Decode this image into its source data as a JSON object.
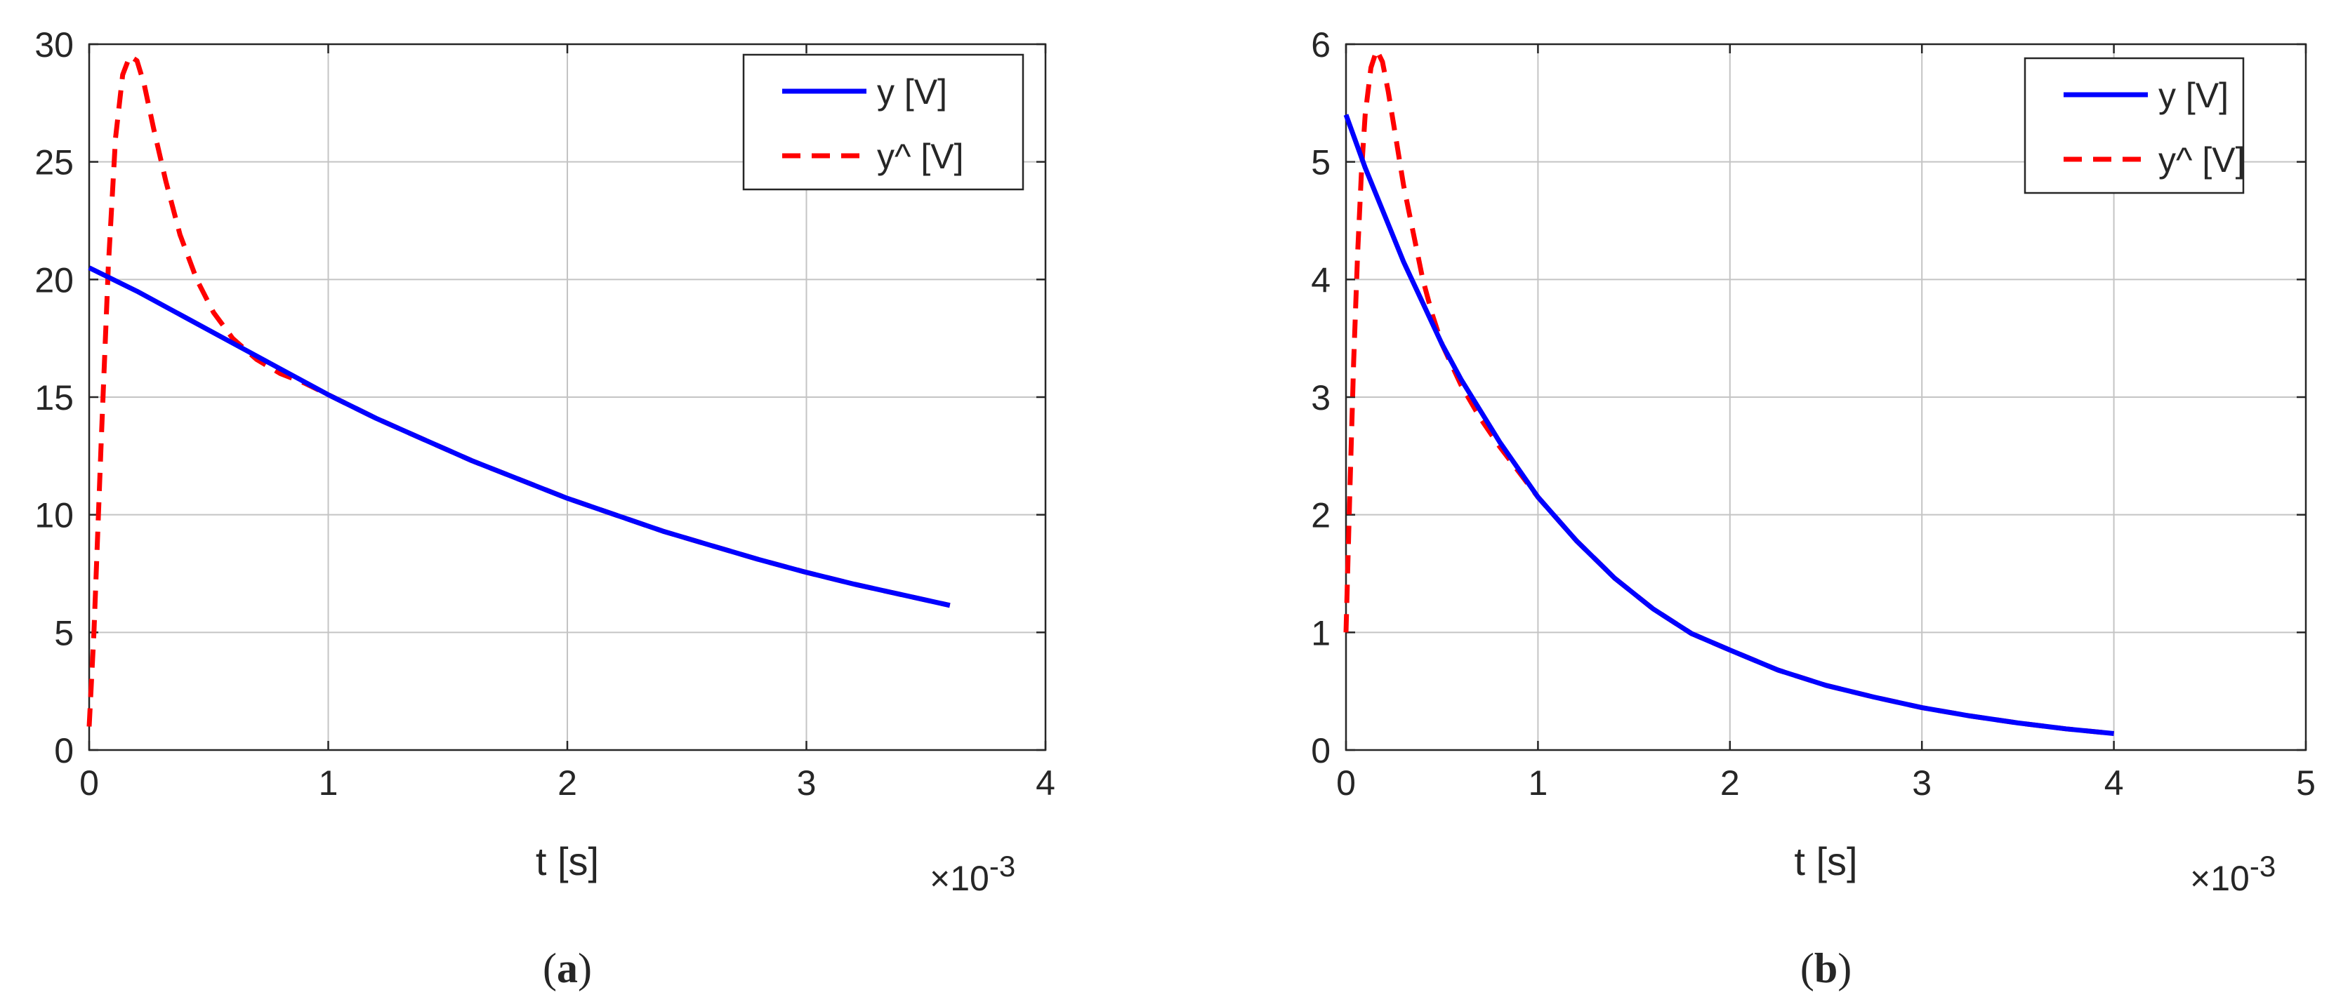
{
  "chart_data": [
    {
      "type": "line",
      "panel": "a",
      "caption": "a",
      "xlabel": "t [s]",
      "x_multiplier": "×10",
      "x_multiplier_exponent": "-3",
      "xlim": [
        0,
        4
      ],
      "ylim": [
        0,
        30
      ],
      "xticks": [
        "0",
        "1",
        "2",
        "3",
        "4"
      ],
      "yticks": [
        "0",
        "5",
        "10",
        "15",
        "20",
        "25",
        "30"
      ],
      "grid": true,
      "legend_position": "top-right",
      "series": [
        {
          "name": "y [V]",
          "color": "#0000ff",
          "style": "solid",
          "x": [
            0,
            0.2,
            0.4,
            0.6,
            0.8,
            1.0,
            1.2,
            1.4,
            1.6,
            1.8,
            2.0,
            2.2,
            2.4,
            2.6,
            2.8,
            3.0,
            3.2,
            3.4,
            3.6
          ],
          "y": [
            20.5,
            19.5,
            18.4,
            17.3,
            16.2,
            15.1,
            14.1,
            13.2,
            12.3,
            11.5,
            10.7,
            10.0,
            9.3,
            8.7,
            8.1,
            7.55,
            7.05,
            6.6,
            6.15
          ]
        },
        {
          "name": "y^ [V]",
          "color": "#ff0000",
          "style": "dashed",
          "x": [
            0,
            0.02,
            0.05,
            0.08,
            0.11,
            0.14,
            0.17,
            0.2,
            0.23,
            0.27,
            0.32,
            0.38,
            0.45,
            0.52,
            0.6,
            0.7,
            0.8,
            0.9,
            1.0,
            1.2,
            1.4,
            1.6,
            1.8,
            2.0,
            2.2,
            2.4,
            2.6,
            2.8,
            3.0,
            3.2,
            3.4,
            3.6
          ],
          "y": [
            1.0,
            5.0,
            13.0,
            20.5,
            26.0,
            28.7,
            29.5,
            29.3,
            28.3,
            26.4,
            24.2,
            21.9,
            20.0,
            18.6,
            17.5,
            16.6,
            16.0,
            15.6,
            15.1,
            14.1,
            13.2,
            12.3,
            11.5,
            10.7,
            10.0,
            9.3,
            8.7,
            8.1,
            7.55,
            7.05,
            6.6,
            6.15
          ]
        }
      ]
    },
    {
      "type": "line",
      "panel": "b",
      "caption": "b",
      "xlabel": "t [s]",
      "x_multiplier": "×10",
      "x_multiplier_exponent": "-3",
      "xlim": [
        0,
        5
      ],
      "ylim": [
        0,
        6
      ],
      "xticks": [
        "0",
        "1",
        "2",
        "3",
        "4",
        "5"
      ],
      "yticks": [
        "0",
        "1",
        "2",
        "3",
        "4",
        "5",
        "6"
      ],
      "grid": true,
      "legend_position": "top-right",
      "series": [
        {
          "name": "y [V]",
          "color": "#0000ff",
          "style": "solid",
          "x": [
            0,
            0.1,
            0.2,
            0.3,
            0.4,
            0.5,
            0.6,
            0.8,
            1.0,
            1.2,
            1.4,
            1.6,
            1.8,
            2.0,
            2.25,
            2.5,
            2.75,
            3.0,
            3.25,
            3.5,
            3.75,
            4.0
          ],
          "y": [
            5.4,
            4.95,
            4.55,
            4.15,
            3.8,
            3.45,
            3.15,
            2.62,
            2.15,
            1.78,
            1.46,
            1.2,
            0.99,
            0.85,
            0.68,
            0.55,
            0.45,
            0.36,
            0.29,
            0.23,
            0.18,
            0.14
          ]
        },
        {
          "name": "y^ [V]",
          "color": "#ff0000",
          "style": "dashed",
          "x": [
            0,
            0.02,
            0.04,
            0.06,
            0.08,
            0.1,
            0.13,
            0.16,
            0.19,
            0.22,
            0.26,
            0.3,
            0.35,
            0.4,
            0.45,
            0.5,
            0.6,
            0.7,
            0.8,
            1.0,
            1.2,
            1.4,
            1.6,
            1.8,
            2.0,
            2.25,
            2.5,
            2.75,
            3.0,
            3.25,
            3.5,
            3.75,
            4.0
          ],
          "y": [
            1.0,
            2.2,
            3.3,
            4.2,
            4.9,
            5.4,
            5.8,
            5.95,
            5.85,
            5.6,
            5.2,
            4.8,
            4.4,
            4.0,
            3.7,
            3.45,
            3.1,
            2.82,
            2.58,
            2.15,
            1.78,
            1.46,
            1.2,
            0.99,
            0.85,
            0.68,
            0.55,
            0.45,
            0.36,
            0.29,
            0.23,
            0.18,
            0.14
          ]
        }
      ]
    }
  ]
}
